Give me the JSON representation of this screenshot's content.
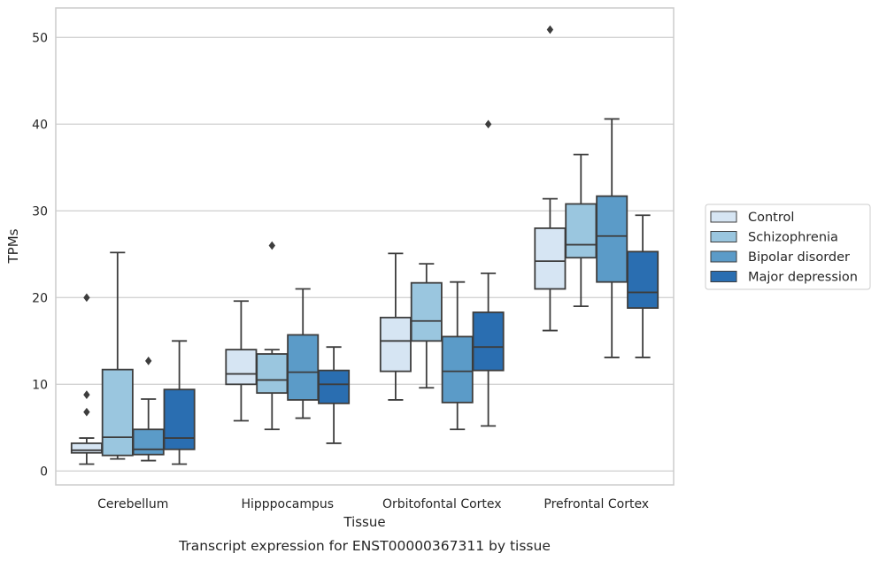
{
  "chart_data": {
    "type": "box",
    "title": "",
    "caption": "Transcript expression for ENST00000367311 by tissue",
    "xlabel": "Tissue",
    "ylabel": "TPMs",
    "ylim": [
      -1.6,
      53.4
    ],
    "yticks": [
      0,
      10,
      20,
      30,
      40,
      50
    ],
    "grid": "horizontal",
    "legend_position": "right",
    "categories": [
      "Cerebellum",
      "Hipppocampus",
      "Orbitofontal Cortex",
      "Prefrontal Cortex"
    ],
    "series": [
      {
        "name": "Control",
        "color": "#d6e5f3",
        "boxes": [
          {
            "whislo": 0.8,
            "q1": 2.1,
            "med": 2.4,
            "q3": 3.2,
            "whishi": 3.8,
            "fliers": [
              20.0,
              8.8,
              6.8
            ]
          },
          {
            "whislo": 5.8,
            "q1": 10.0,
            "med": 11.2,
            "q3": 14.0,
            "whishi": 19.6,
            "fliers": []
          },
          {
            "whislo": 8.2,
            "q1": 11.5,
            "med": 15.0,
            "q3": 17.7,
            "whishi": 25.1,
            "fliers": []
          },
          {
            "whislo": 16.2,
            "q1": 21.0,
            "med": 24.2,
            "q3": 28.0,
            "whishi": 31.4,
            "fliers": [
              50.9
            ]
          }
        ]
      },
      {
        "name": "Schizophrenia",
        "color": "#9ac6df",
        "boxes": [
          {
            "whislo": 1.4,
            "q1": 1.8,
            "med": 3.9,
            "q3": 11.7,
            "whishi": 25.2,
            "fliers": []
          },
          {
            "whislo": 4.8,
            "q1": 9.0,
            "med": 10.5,
            "q3": 13.5,
            "whishi": 14.0,
            "fliers": [
              26.0
            ]
          },
          {
            "whislo": 9.6,
            "q1": 15.0,
            "med": 17.3,
            "q3": 21.7,
            "whishi": 23.9,
            "fliers": []
          },
          {
            "whislo": 19.0,
            "q1": 24.6,
            "med": 26.1,
            "q3": 30.8,
            "whishi": 36.5,
            "fliers": []
          }
        ]
      },
      {
        "name": "Bipolar disorder",
        "color": "#5b9bc8",
        "boxes": [
          {
            "whislo": 1.2,
            "q1": 1.9,
            "med": 2.5,
            "q3": 4.8,
            "whishi": 8.3,
            "fliers": [
              12.7
            ]
          },
          {
            "whislo": 6.1,
            "q1": 8.2,
            "med": 11.4,
            "q3": 15.7,
            "whishi": 21.0,
            "fliers": []
          },
          {
            "whislo": 4.8,
            "q1": 7.9,
            "med": 11.5,
            "q3": 15.5,
            "whishi": 21.8,
            "fliers": []
          },
          {
            "whislo": 13.1,
            "q1": 21.8,
            "med": 27.1,
            "q3": 31.7,
            "whishi": 40.6,
            "fliers": []
          }
        ]
      },
      {
        "name": "Major depression",
        "color": "#2a6eb1",
        "boxes": [
          {
            "whislo": 0.8,
            "q1": 2.5,
            "med": 3.8,
            "q3": 9.4,
            "whishi": 15.0,
            "fliers": []
          },
          {
            "whislo": 3.2,
            "q1": 7.8,
            "med": 10.0,
            "q3": 11.6,
            "whishi": 14.3,
            "fliers": []
          },
          {
            "whislo": 5.2,
            "q1": 11.6,
            "med": 14.3,
            "q3": 18.3,
            "whishi": 22.8,
            "fliers": [
              40.0
            ]
          },
          {
            "whislo": 13.1,
            "q1": 18.8,
            "med": 20.6,
            "q3": 25.3,
            "whishi": 29.5,
            "fliers": []
          }
        ]
      }
    ]
  }
}
